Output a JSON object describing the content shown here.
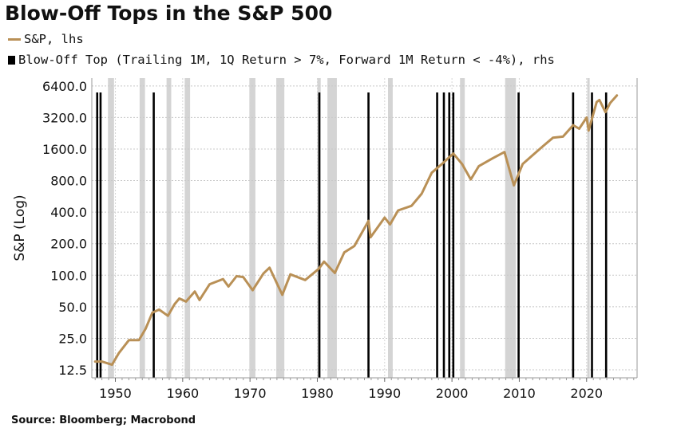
{
  "title": "Blow-Off Tops in the S&P 500",
  "legend": [
    {
      "label": "S&P, lhs",
      "color": "#b99056",
      "kind": "line"
    },
    {
      "label": "Blow-Off Top (Trailing 1M, 1Q Return > 7%, Forward 1M Return < -4%), rhs",
      "color": "#000000",
      "kind": "bar"
    }
  ],
  "source": "Source: Bloomberg; Macrobond",
  "chart_data": {
    "type": "line",
    "title": "Blow-Off Tops in the S&P 500",
    "ylabel": "S&P (Log)",
    "xlabel": "",
    "y_scale": "log2",
    "ylim": [
      10.5,
      7600
    ],
    "xlim": [
      1946.5,
      2027.5
    ],
    "y_ticks": [
      12.5,
      25.0,
      50.0,
      100.0,
      200.0,
      400.0,
      800.0,
      1600.0,
      3200.0,
      6400.0
    ],
    "y_tick_labels": [
      "12.5",
      "25.0",
      "50.0",
      "100.0",
      "200.0",
      "400.0",
      "800.0",
      "1600.0",
      "3200.0",
      "6400.0"
    ],
    "x_ticks": [
      1950,
      1960,
      1970,
      1980,
      1990,
      2000,
      2010,
      2020
    ],
    "x_tick_labels": [
      "1950",
      "1960",
      "1970",
      "1980",
      "1990",
      "2000",
      "2010",
      "2020"
    ],
    "grid": true,
    "series": [
      {
        "name": "S&P, lhs",
        "color": "#b99056",
        "x": [
          1947.0,
          1948.0,
          1949.5,
          1950.5,
          1952.0,
          1953.5,
          1954.5,
          1955.5,
          1956.5,
          1957.8,
          1958.8,
          1959.5,
          1960.5,
          1961.8,
          1962.5,
          1964.0,
          1966.0,
          1966.8,
          1968.0,
          1969.0,
          1970.4,
          1972.0,
          1972.9,
          1974.8,
          1976.0,
          1978.2,
          1980.2,
          1981.0,
          1982.6,
          1984.0,
          1985.5,
          1987.6,
          1987.9,
          1990.0,
          1990.8,
          1992.0,
          1994.0,
          1995.5,
          1997.0,
          1998.5,
          2000.2,
          2001.5,
          2002.8,
          2004.0,
          2006.0,
          2007.8,
          2009.2,
          2010.5,
          2012.0,
          2013.5,
          2015.0,
          2016.5,
          2018.0,
          2018.9,
          2020.0,
          2020.3,
          2021.5,
          2021.9,
          2022.8,
          2023.5,
          2024.5
        ],
        "values": [
          15,
          15,
          14,
          18,
          24,
          24,
          31,
          44,
          47,
          41,
          53,
          60,
          56,
          70,
          58,
          82,
          92,
          78,
          98,
          96,
          72,
          104,
          118,
          65,
          102,
          90,
          115,
          135,
          105,
          165,
          190,
          330,
          230,
          355,
          305,
          415,
          460,
          600,
          950,
          1150,
          1450,
          1150,
          820,
          1100,
          1300,
          1500,
          720,
          1150,
          1400,
          1700,
          2050,
          2100,
          2700,
          2500,
          3200,
          2400,
          4500,
          4700,
          3600,
          4400,
          5200
        ]
      },
      {
        "name": "Blow-Off Top (Trailing 1M, 1Q Return > 7%, Forward 1M Return < -4%), rhs",
        "color": "#000000",
        "type": "event-bar",
        "years": [
          1947.3,
          1947.8,
          1955.7,
          1980.3,
          1987.6,
          1997.8,
          1998.8,
          1999.6,
          2000.2,
          2009.9,
          2018.0,
          2020.8,
          2022.9
        ]
      }
    ],
    "recessions": [
      [
        1948.9,
        1949.8
      ],
      [
        1953.6,
        1954.4
      ],
      [
        1957.6,
        1958.3
      ],
      [
        1960.3,
        1961.1
      ],
      [
        1969.9,
        1970.8
      ],
      [
        1973.9,
        1975.1
      ],
      [
        1980.0,
        1980.5
      ],
      [
        1981.5,
        1982.9
      ],
      [
        1990.5,
        1991.2
      ],
      [
        2001.2,
        2001.9
      ],
      [
        2007.9,
        2009.5
      ],
      [
        2020.1,
        2020.4
      ]
    ],
    "recession_color": "#d4d4d4"
  }
}
